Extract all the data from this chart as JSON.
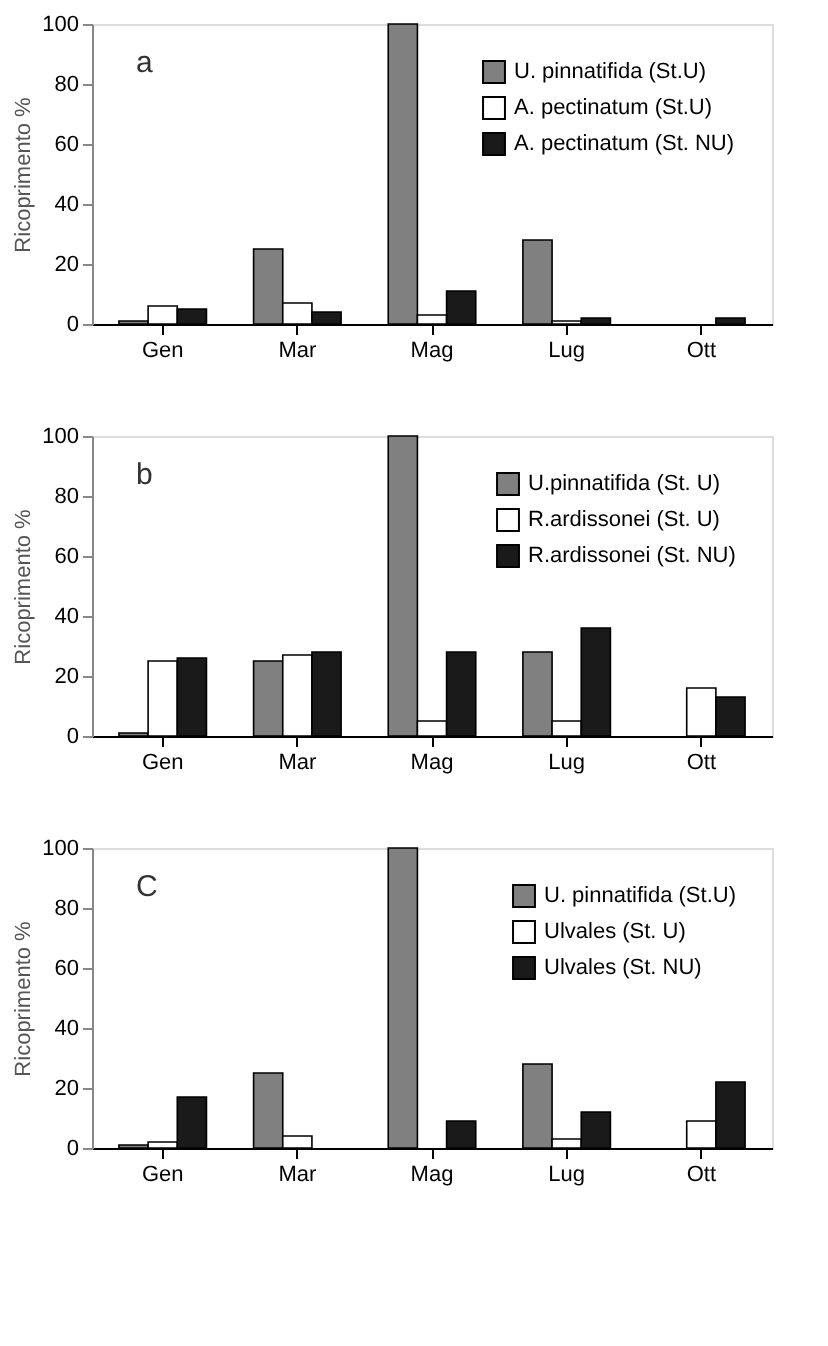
{
  "chart_data": [
    {
      "type": "bar",
      "categories": [
        "Gen",
        "Mar",
        "Mag",
        "Lug",
        "Ott"
      ],
      "ylabel": "Ricoprimento %",
      "ylim": [
        0,
        100
      ],
      "yticks": [
        0,
        20,
        40,
        60,
        80,
        100
      ],
      "legend": "top right",
      "annotations": [
        "a"
      ],
      "series": [
        {
          "name": "U. pinnatifida (St.U)",
          "color": "#808080",
          "values": [
            1,
            25,
            100,
            28,
            null
          ]
        },
        {
          "name": "A. pectinatum (St.U)",
          "color": "#ffffff",
          "values": [
            6,
            7,
            3,
            1,
            null
          ]
        },
        {
          "name": "A. pectinatum (St. NU)",
          "color": "#1a1a1a",
          "values": [
            5,
            4,
            11,
            2,
            2
          ]
        }
      ]
    },
    {
      "type": "bar",
      "categories": [
        "Gen",
        "Mar",
        "Mag",
        "Lug",
        "Ott"
      ],
      "ylabel": "Ricoprimento %",
      "ylim": [
        0,
        100
      ],
      "yticks": [
        0,
        20,
        40,
        60,
        80,
        100
      ],
      "legend": "top right",
      "annotations": [
        "b"
      ],
      "series": [
        {
          "name": "U.pinnatifida (St. U)",
          "color": "#808080",
          "values": [
            1,
            25,
            100,
            28,
            null
          ]
        },
        {
          "name": "R.ardissonei (St. U)",
          "color": "#ffffff",
          "values": [
            25,
            27,
            5,
            5,
            16
          ]
        },
        {
          "name": "R.ardissonei (St. NU)",
          "color": "#1a1a1a",
          "values": [
            26,
            28,
            28,
            36,
            13
          ]
        }
      ]
    },
    {
      "type": "bar",
      "categories": [
        "Gen",
        "Mar",
        "Mag",
        "Lug",
        "Ott"
      ],
      "ylabel": "Ricoprimento %",
      "ylim": [
        0,
        100
      ],
      "yticks": [
        0,
        20,
        40,
        60,
        80,
        100
      ],
      "legend": "top right",
      "annotations": [
        "C"
      ],
      "series": [
        {
          "name": "U. pinnatifida (St.U)",
          "color": "#808080",
          "values": [
            1,
            25,
            100,
            28,
            null
          ]
        },
        {
          "name": "Ulvales (St. U)",
          "color": "#ffffff",
          "values": [
            2,
            4,
            null,
            3,
            9
          ]
        },
        {
          "name": "Ulvales (St. NU)",
          "color": "#1a1a1a",
          "values": [
            17,
            null,
            9,
            12,
            22
          ]
        }
      ]
    }
  ]
}
